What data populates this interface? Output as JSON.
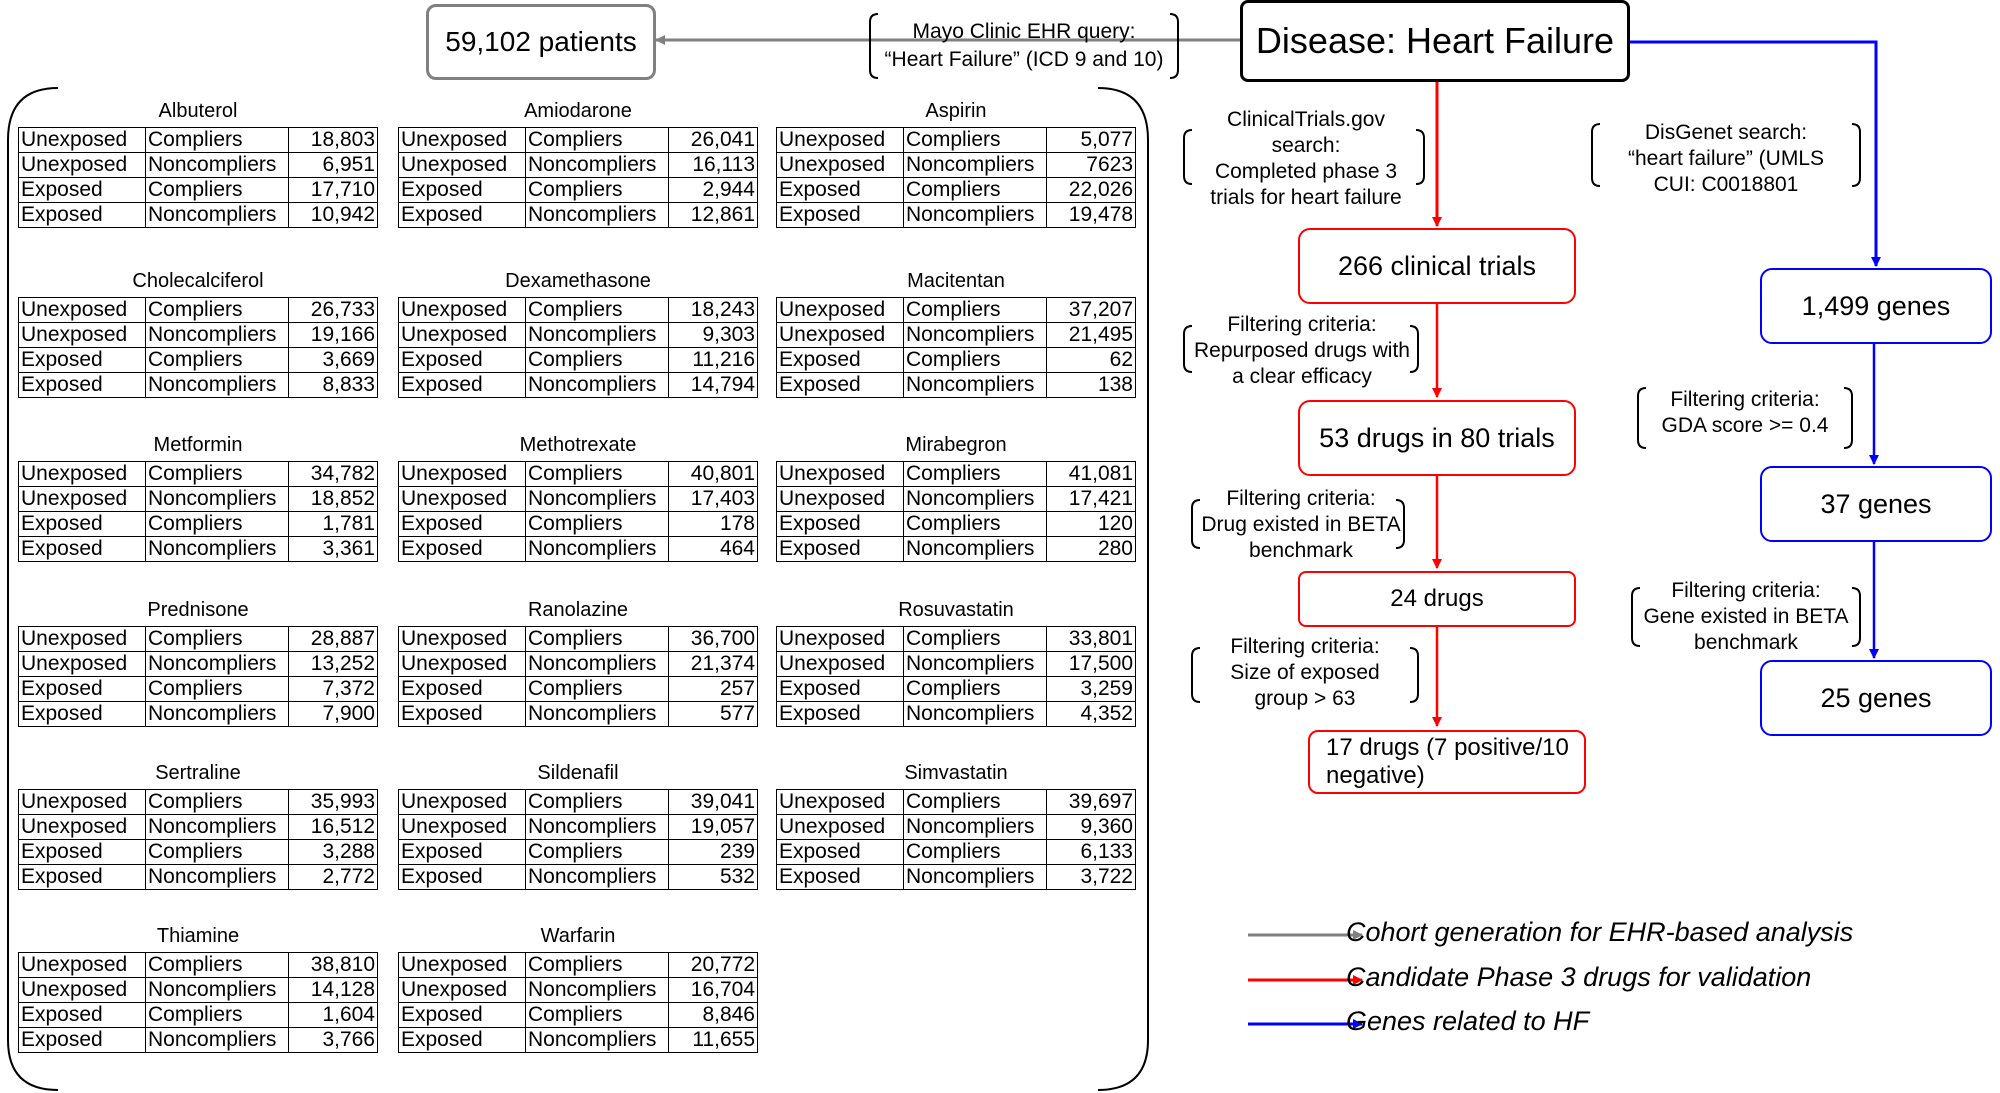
{
  "patients_box": "59,102 patients",
  "ehr_query": {
    "line1": "Mayo Clinic EHR query:",
    "line2": "“Heart Failure” (ICD 9 and 10)"
  },
  "disease_box": "Disease: Heart Failure",
  "clinical": {
    "search": [
      "ClinicalTrials.gov",
      "search:",
      "Completed phase 3",
      "trials for heart failure"
    ],
    "trials_box": "266 clinical trials",
    "filter1": [
      "Filtering criteria:",
      "Repurposed drugs with",
      "a clear efficacy"
    ],
    "drugs80_box": "53 drugs in 80 trials",
    "filter2": [
      "Filtering criteria:",
      "Drug existed in BETA",
      "benchmark"
    ],
    "drugs24_box": "24 drugs",
    "filter3": [
      "Filtering criteria:",
      "Size of exposed",
      "group > 63"
    ],
    "drugs17_box": [
      "17 drugs (7 positive/10",
      "negative)"
    ]
  },
  "genes": {
    "search": [
      "DisGenet search:",
      "“heart failure” (UMLS",
      "CUI: C0018801"
    ],
    "genes1499_box": "1,499 genes",
    "filter1": [
      "Filtering criteria:",
      "GDA score >= 0.4"
    ],
    "genes37_box": "37 genes",
    "filter2": [
      "Filtering criteria:",
      "Gene existed in BETA",
      "benchmark"
    ],
    "genes25_box": "25 genes"
  },
  "legend": [
    {
      "label": "Cohort generation for EHR-based analysis",
      "color": "#808080"
    },
    {
      "label": "Candidate Phase 3 drugs for validation",
      "color": "#ff0000"
    },
    {
      "label": "Genes related to HF",
      "color": "#0000ff"
    }
  ],
  "colors": {
    "gray": "#808080",
    "red": "#ff0000",
    "blue": "#0000ff"
  },
  "drugs": [
    {
      "name": "Albuterol",
      "rows": [
        [
          "Unexposed",
          "Compliers",
          "18,803"
        ],
        [
          "Unexposed",
          "Noncompliers",
          "6,951"
        ],
        [
          "Exposed",
          "Compliers",
          "17,710"
        ],
        [
          "Exposed",
          "Noncompliers",
          "10,942"
        ]
      ]
    },
    {
      "name": "Amiodarone",
      "rows": [
        [
          "Unexposed",
          "Compliers",
          "26,041"
        ],
        [
          "Unexposed",
          "Noncompliers",
          "16,113"
        ],
        [
          "Exposed",
          "Compliers",
          "2,944"
        ],
        [
          "Exposed",
          "Noncompliers",
          "12,861"
        ]
      ]
    },
    {
      "name": "Aspirin",
      "rows": [
        [
          "Unexposed",
          "Compliers",
          "5,077"
        ],
        [
          "Unexposed",
          "Noncompliers",
          "7623"
        ],
        [
          "Exposed",
          "Compliers",
          "22,026"
        ],
        [
          "Exposed",
          "Noncompliers",
          "19,478"
        ]
      ]
    },
    {
      "name": "Cholecalciferol",
      "rows": [
        [
          "Unexposed",
          "Compliers",
          "26,733"
        ],
        [
          "Unexposed",
          "Noncompliers",
          "19,166"
        ],
        [
          "Exposed",
          "Compliers",
          "3,669"
        ],
        [
          "Exposed",
          "Noncompliers",
          "8,833"
        ]
      ]
    },
    {
      "name": "Dexamethasone",
      "rows": [
        [
          "Unexposed",
          "Compliers",
          "18,243"
        ],
        [
          "Unexposed",
          "Noncompliers",
          "9,303"
        ],
        [
          "Exposed",
          "Compliers",
          "11,216"
        ],
        [
          "Exposed",
          "Noncompliers",
          "14,794"
        ]
      ]
    },
    {
      "name": "Macitentan",
      "rows": [
        [
          "Unexposed",
          "Compliers",
          "37,207"
        ],
        [
          "Unexposed",
          "Noncompliers",
          "21,495"
        ],
        [
          "Exposed",
          "Compliers",
          "62"
        ],
        [
          "Exposed",
          "Noncompliers",
          "138"
        ]
      ]
    },
    {
      "name": "Metformin",
      "rows": [
        [
          "Unexposed",
          "Compliers",
          "34,782"
        ],
        [
          "Unexposed",
          "Noncompliers",
          "18,852"
        ],
        [
          "Exposed",
          "Compliers",
          "1,781"
        ],
        [
          "Exposed",
          "Noncompliers",
          "3,361"
        ]
      ]
    },
    {
      "name": "Methotrexate",
      "rows": [
        [
          "Unexposed",
          "Compliers",
          "40,801"
        ],
        [
          "Unexposed",
          "Noncompliers",
          "17,403"
        ],
        [
          "Exposed",
          "Compliers",
          "178"
        ],
        [
          "Exposed",
          "Noncompliers",
          "464"
        ]
      ]
    },
    {
      "name": "Mirabegron",
      "rows": [
        [
          "Unexposed",
          "Compliers",
          "41,081"
        ],
        [
          "Unexposed",
          "Noncompliers",
          "17,421"
        ],
        [
          "Exposed",
          "Compliers",
          "120"
        ],
        [
          "Exposed",
          "Noncompliers",
          "280"
        ]
      ]
    },
    {
      "name": "Prednisone",
      "rows": [
        [
          "Unexposed",
          "Compliers",
          "28,887"
        ],
        [
          "Unexposed",
          "Noncompliers",
          "13,252"
        ],
        [
          "Exposed",
          "Compliers",
          "7,372"
        ],
        [
          "Exposed",
          "Noncompliers",
          "7,900"
        ]
      ]
    },
    {
      "name": "Ranolazine",
      "rows": [
        [
          "Unexposed",
          "Compliers",
          "36,700"
        ],
        [
          "Unexposed",
          "Noncompliers",
          "21,374"
        ],
        [
          "Exposed",
          "Compliers",
          "257"
        ],
        [
          "Exposed",
          "Noncompliers",
          "577"
        ]
      ]
    },
    {
      "name": "Rosuvastatin",
      "rows": [
        [
          "Unexposed",
          "Compliers",
          "33,801"
        ],
        [
          "Unexposed",
          "Noncompliers",
          "17,500"
        ],
        [
          "Exposed",
          "Compliers",
          "3,259"
        ],
        [
          "Exposed",
          "Noncompliers",
          "4,352"
        ]
      ]
    },
    {
      "name": "Sertraline",
      "rows": [
        [
          "Unexposed",
          "Compliers",
          "35,993"
        ],
        [
          "Unexposed",
          "Noncompliers",
          "16,512"
        ],
        [
          "Exposed",
          "Compliers",
          "3,288"
        ],
        [
          "Exposed",
          "Noncompliers",
          "2,772"
        ]
      ]
    },
    {
      "name": "Sildenafil",
      "rows": [
        [
          "Unexposed",
          "Compliers",
          "39,041"
        ],
        [
          "Unexposed",
          "Noncompliers",
          "19,057"
        ],
        [
          "Exposed",
          "Compliers",
          "239"
        ],
        [
          "Exposed",
          "Noncompliers",
          "532"
        ]
      ]
    },
    {
      "name": "Simvastatin",
      "rows": [
        [
          "Unexposed",
          "Compliers",
          "39,697"
        ],
        [
          "Unexposed",
          "Noncompliers",
          "9,360"
        ],
        [
          "Exposed",
          "Compliers",
          "6,133"
        ],
        [
          "Exposed",
          "Noncompliers",
          "3,722"
        ]
      ]
    },
    {
      "name": "Thiamine",
      "rows": [
        [
          "Unexposed",
          "Compliers",
          "38,810"
        ],
        [
          "Unexposed",
          "Noncompliers",
          "14,128"
        ],
        [
          "Exposed",
          "Compliers",
          "1,604"
        ],
        [
          "Exposed",
          "Noncompliers",
          "3,766"
        ]
      ]
    },
    {
      "name": "Warfarin",
      "rows": [
        [
          "Unexposed",
          "Compliers",
          "20,772"
        ],
        [
          "Unexposed",
          "Noncompliers",
          "16,704"
        ],
        [
          "Exposed",
          "Compliers",
          "8,846"
        ],
        [
          "Exposed",
          "Noncompliers",
          "11,655"
        ]
      ]
    }
  ]
}
